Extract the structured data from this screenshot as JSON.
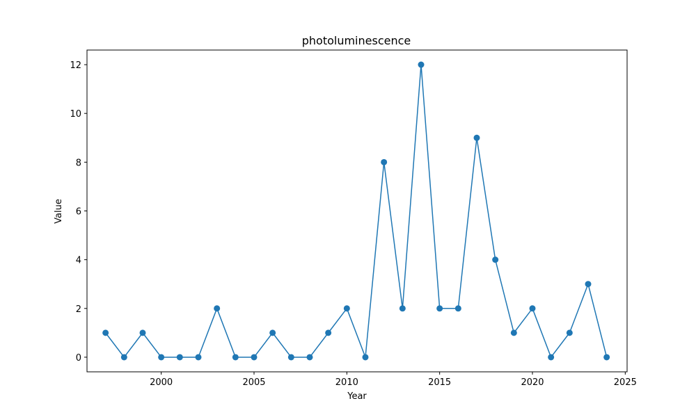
{
  "chart_data": {
    "type": "line",
    "title": "photoluminescence",
    "xlabel": "Year",
    "ylabel": "Value",
    "xlim": [
      1996,
      2025.1
    ],
    "ylim": [
      -0.6,
      12.6
    ],
    "xticks": [
      2000,
      2005,
      2010,
      2015,
      2020,
      2025
    ],
    "yticks": [
      0,
      2,
      4,
      6,
      8,
      10,
      12
    ],
    "grid": false,
    "color": "#1f77b4",
    "marker": "circle",
    "series": [
      {
        "x": [
          1997,
          1998,
          1999,
          2000,
          2001,
          2002,
          2003,
          2004,
          2005,
          2006,
          2007,
          2008,
          2009,
          2010,
          2011,
          2012,
          2013,
          2014,
          2015,
          2016,
          2017,
          2018,
          2019,
          2020,
          2021,
          2022,
          2023,
          2024
        ],
        "values": [
          1,
          0,
          1,
          0,
          0,
          0,
          2,
          0,
          0,
          1,
          0,
          0,
          1,
          2,
          0,
          8,
          2,
          12,
          2,
          2,
          9,
          4,
          1,
          2,
          0,
          1,
          3,
          0
        ]
      }
    ]
  }
}
